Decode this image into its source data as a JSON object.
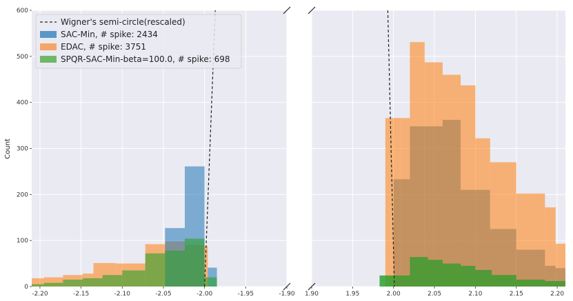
{
  "chart_data": [
    {
      "type": "histogram",
      "panel": "left",
      "ylabel": "Count",
      "xlim": [
        -2.21,
        -1.9
      ],
      "ylim": [
        0,
        600
      ],
      "xticks": [
        -2.2,
        -2.15,
        -2.1,
        -2.05,
        -2.0,
        -1.95,
        -1.9
      ],
      "xtick_labels": [
        "-2.20",
        "-2.15",
        "-2.10",
        "-2.05",
        "-2.00",
        "-1.95",
        "-1.90"
      ],
      "yticks": [
        0,
        100,
        200,
        300,
        400,
        500,
        600
      ],
      "ytick_labels": [
        "0",
        "100",
        "200",
        "300",
        "400",
        "500",
        "600"
      ],
      "grid": true,
      "legend_position": "top-left",
      "series": [
        {
          "name": "SAC-Min, # spike: 2434",
          "color": "#1f77b4",
          "bins": [
            [
              -2.0625,
              -2.0375,
              40
            ],
            [
              -2.0375,
              -2.0125,
              60
            ],
            [
              -2.0125,
              -2.0,
              40
            ],
            [
              -2.0375,
              -2.0125,
              65
            ],
            [
              -2.0375,
              -2.0375,
              0
            ],
            [
              -2.0375,
              -2.0125,
              0
            ],
            [
              -2.0375,
              -2.0125,
              0
            ],
            [
              -2.0375,
              -2.0125,
              0
            ]
          ],
          "steps": [
            [
              -2.048,
              -2.024,
              127
            ],
            [
              -2.024,
              -2.0,
              261
            ],
            [
              -2.0,
              -1.985,
              0
            ],
            [
              -1.996,
              -1.985,
              41
            ]
          ]
        },
        {
          "name": "EDAC, # spike: 3751",
          "color": "#ff7f0e",
          "steps": [
            [
              -2.21,
              -2.195,
              18
            ],
            [
              -2.195,
              -2.172,
              20
            ],
            [
              -2.172,
              -2.148,
              25
            ],
            [
              -2.148,
              -2.135,
              28
            ],
            [
              -2.135,
              -2.108,
              51
            ],
            [
              -2.108,
              -2.072,
              50
            ],
            [
              -2.072,
              -2.048,
              92
            ],
            [
              -2.048,
              -2.024,
              98
            ],
            [
              -2.024,
              -2.0,
              90
            ],
            [
              -2.0,
              -1.996,
              88
            ]
          ]
        },
        {
          "name": "SPQR-SAC-Min-beta=100.0, # spike: 698",
          "color": "#2ca02c",
          "steps": [
            [
              -2.21,
              -2.195,
              5
            ],
            [
              -2.195,
              -2.172,
              8
            ],
            [
              -2.172,
              -2.148,
              15
            ],
            [
              -2.148,
              -2.124,
              18
            ],
            [
              -2.124,
              -2.1,
              25
            ],
            [
              -2.1,
              -2.072,
              35
            ],
            [
              -2.072,
              -2.048,
              72
            ],
            [
              -2.048,
              -2.024,
              78
            ],
            [
              -2.024,
              -2.0,
              104
            ],
            [
              -2.0,
              -1.985,
              20
            ]
          ]
        }
      ],
      "reference_line": {
        "name": "Wigner's semi-circle(rescaled)",
        "style": "dashed",
        "color": "#222222",
        "points": [
          [
            -2.0,
            0
          ],
          [
            -1.987,
            600
          ]
        ]
      }
    },
    {
      "type": "histogram",
      "panel": "right",
      "xlim": [
        1.9,
        2.21
      ],
      "ylim": [
        0,
        600
      ],
      "xticks": [
        1.9,
        1.95,
        2.0,
        2.05,
        2.1,
        2.15,
        2.2
      ],
      "xtick_labels": [
        "1.90",
        "1.95",
        "2.00",
        "2.05",
        "2.10",
        "2.15",
        "2.20"
      ],
      "grid": true,
      "series": [
        {
          "name": "SAC-Min, # spike: 2434",
          "color": "#1f77b4",
          "steps": [
            [
              1.99,
              2.0,
              0
            ],
            [
              2.0,
              2.012,
              0
            ]
          ]
        },
        {
          "name": "EDAC, # spike: 3751",
          "color": "#ff7f0e",
          "steps": [
            [
              1.99,
              2.0,
              366
            ],
            [
              2.0,
              2.008,
              366
            ],
            [
              2.008,
              2.02,
              366
            ],
            [
              2.02,
              2.038,
              531
            ],
            [
              2.038,
              2.06,
              487
            ],
            [
              2.06,
              2.082,
              460
            ],
            [
              2.082,
              2.1,
              437
            ],
            [
              2.1,
              2.118,
              322
            ],
            [
              2.118,
              2.15,
              270
            ],
            [
              2.15,
              2.185,
              202
            ],
            [
              2.185,
              2.198,
              172
            ],
            [
              2.198,
              2.21,
              93
            ]
          ]
        },
        {
          "name": "SPQR-SAC-Min-beta=100.0, # spike: 698",
          "color": "#2ca02c",
          "steps": [
            [
              1.983,
              1.993,
              24
            ],
            [
              1.993,
              2.008,
              24
            ],
            [
              2.008,
              2.02,
              24
            ],
            [
              2.02,
              2.042,
              64
            ],
            [
              2.042,
              2.06,
              58
            ],
            [
              2.06,
              2.082,
              50
            ],
            [
              2.082,
              2.1,
              45
            ],
            [
              2.1,
              2.12,
              36
            ],
            [
              2.12,
              2.15,
              25
            ],
            [
              2.15,
              2.185,
              15
            ],
            [
              2.185,
              2.21,
              12
            ]
          ]
        }
      ],
      "overlap": {
        "color": "#9a7a50",
        "steps": [
          [
            2.0,
            2.008,
            233
          ],
          [
            2.008,
            2.02,
            233
          ],
          [
            2.02,
            2.038,
            348
          ],
          [
            2.038,
            2.06,
            348
          ],
          [
            2.06,
            2.082,
            362
          ],
          [
            2.082,
            2.1,
            210
          ],
          [
            2.1,
            2.118,
            210
          ],
          [
            2.118,
            2.15,
            125
          ],
          [
            2.15,
            2.185,
            80
          ],
          [
            2.185,
            2.198,
            45
          ],
          [
            2.198,
            2.21,
            40
          ]
        ]
      },
      "reference_line": {
        "name": "Wigner's semi-circle(rescaled)",
        "style": "dashed",
        "color": "#222222",
        "points": [
          [
            1.993,
            600
          ],
          [
            2.001,
            0
          ]
        ]
      }
    }
  ],
  "legend": {
    "items": [
      {
        "label": "Wigner's semi-circle(rescaled)",
        "kind": "dashed-line",
        "color": "#222222"
      },
      {
        "label": "SAC-Min, # spike: 2434",
        "kind": "patch",
        "color": "#5a96c8"
      },
      {
        "label": "EDAC, # spike: 3751",
        "kind": "patch",
        "color": "#f4a66a"
      },
      {
        "label": "SPQR-SAC-Min-beta=100.0, # spike: 698",
        "kind": "patch",
        "color": "#6fb86a"
      }
    ]
  },
  "colors": {
    "plot_background": "#eaeaf2",
    "grid": "#ffffff",
    "blue": "#1f77b4",
    "orange": "#ff7f0e",
    "green": "#2ca02c",
    "overlap_brown": "#9a7a50"
  }
}
